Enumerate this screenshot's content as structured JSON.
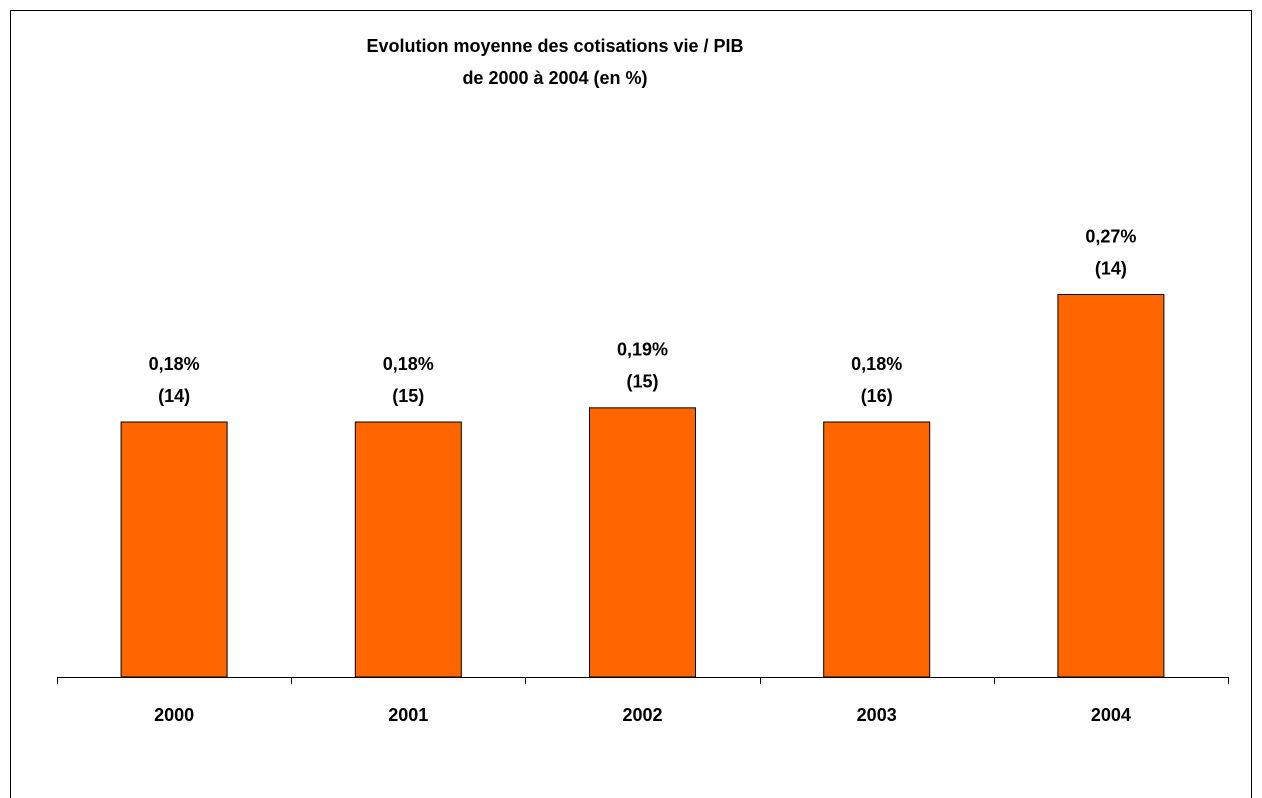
{
  "chart_data": {
    "type": "bar",
    "title": "Evolution moyenne des cotisations vie / PIB",
    "subtitle": "de 2000 à 2004 (en %)",
    "categories": [
      "2000",
      "2001",
      "2002",
      "2003",
      "2004"
    ],
    "values": [
      0.18,
      0.18,
      0.19,
      0.18,
      0.27
    ],
    "value_labels": [
      "0,18%",
      "0,18%",
      "0,19%",
      "0,18%",
      "0,27%"
    ],
    "annotations": [
      "(14)",
      "(15)",
      "(15)",
      "(16)",
      "(14)"
    ],
    "color": "#ff6600",
    "ylim": [
      0,
      0.3
    ]
  }
}
